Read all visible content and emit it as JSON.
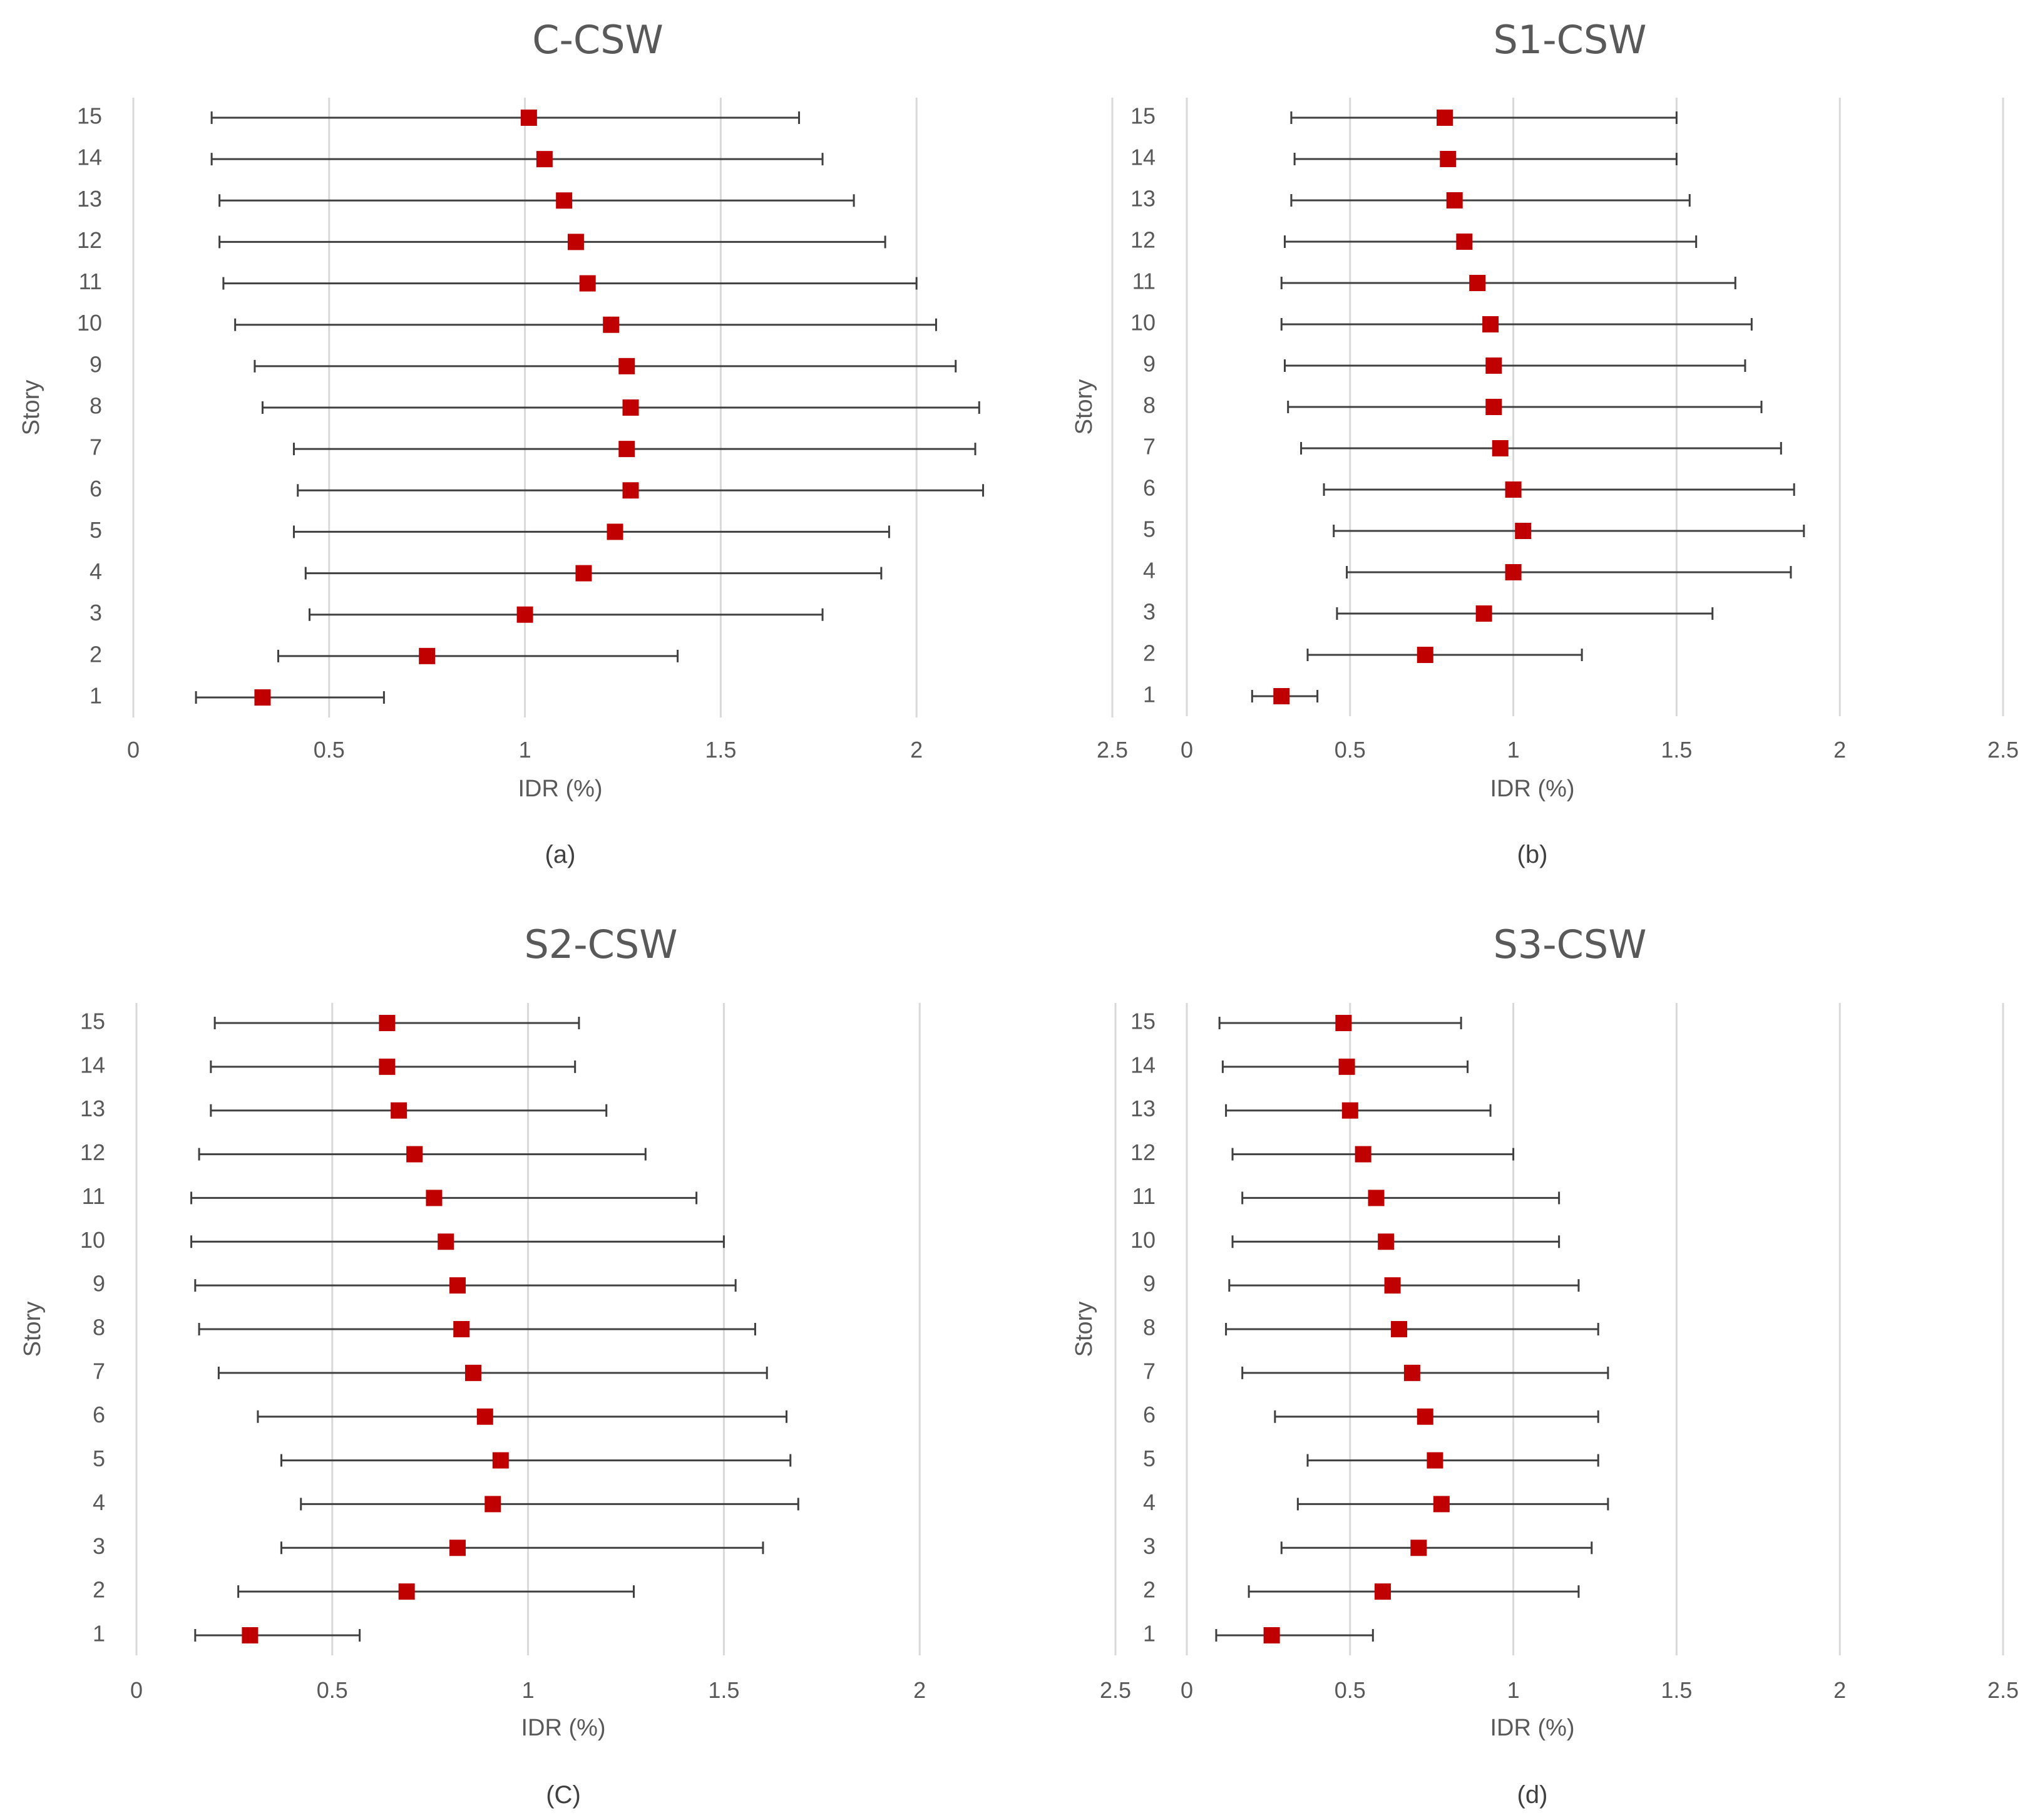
{
  "chart_data": [
    {
      "type": "scatter",
      "title": "C-CSW",
      "caption": "(a)",
      "xlabel": "IDR (%)",
      "ylabel": "Story",
      "xlim": [
        0,
        2.5
      ],
      "x_ticks": [
        "0",
        "0.5",
        "1",
        "1.5",
        "2",
        "2.5"
      ],
      "grid": true,
      "series": [
        {
          "name": "IDR",
          "color": "#c00000",
          "stories": [
            1,
            2,
            3,
            4,
            5,
            6,
            7,
            8,
            9,
            10,
            11,
            12,
            13,
            14,
            15
          ],
          "mean": [
            0.33,
            0.75,
            1.0,
            1.15,
            1.23,
            1.27,
            1.26,
            1.27,
            1.26,
            1.22,
            1.16,
            1.13,
            1.1,
            1.05,
            1.01
          ],
          "min": [
            0.16,
            0.37,
            0.45,
            0.44,
            0.41,
            0.42,
            0.41,
            0.33,
            0.31,
            0.26,
            0.23,
            0.22,
            0.22,
            0.2,
            0.2
          ],
          "max": [
            0.64,
            1.39,
            1.76,
            1.91,
            1.93,
            2.17,
            2.15,
            2.16,
            2.1,
            2.05,
            2.0,
            1.92,
            1.84,
            1.76,
            1.7
          ]
        }
      ]
    },
    {
      "type": "scatter",
      "title": "S1-CSW",
      "caption": "(b)",
      "xlabel": "IDR (%)",
      "ylabel": "Story",
      "xlim": [
        0,
        2.5
      ],
      "x_ticks": [
        "0",
        "0.5",
        "1",
        "1.5",
        "2",
        "2.5"
      ],
      "grid": true,
      "series": [
        {
          "name": "IDR",
          "color": "#c00000",
          "stories": [
            1,
            2,
            3,
            4,
            5,
            6,
            7,
            8,
            9,
            10,
            11,
            12,
            13,
            14,
            15
          ],
          "mean": [
            0.29,
            0.73,
            0.91,
            1.0,
            1.03,
            1.0,
            0.96,
            0.94,
            0.94,
            0.93,
            0.89,
            0.85,
            0.82,
            0.8,
            0.79
          ],
          "min": [
            0.2,
            0.37,
            0.46,
            0.49,
            0.45,
            0.42,
            0.35,
            0.31,
            0.3,
            0.29,
            0.29,
            0.3,
            0.32,
            0.33,
            0.32
          ],
          "max": [
            0.4,
            1.21,
            1.61,
            1.85,
            1.89,
            1.86,
            1.82,
            1.76,
            1.71,
            1.73,
            1.68,
            1.56,
            1.54,
            1.5,
            1.5
          ]
        }
      ]
    },
    {
      "type": "scatter",
      "title": "S2-CSW",
      "caption": "(C)",
      "xlabel": "IDR (%)",
      "ylabel": "Story",
      "xlim": [
        0,
        2.5
      ],
      "x_ticks": [
        "0",
        "0.5",
        "1",
        "1.5",
        "2",
        "2.5"
      ],
      "grid": true,
      "series": [
        {
          "name": "IDR",
          "color": "#c00000",
          "stories": [
            1,
            2,
            3,
            4,
            5,
            6,
            7,
            8,
            9,
            10,
            11,
            12,
            13,
            14,
            15
          ],
          "mean": [
            0.29,
            0.69,
            0.82,
            0.91,
            0.93,
            0.89,
            0.86,
            0.83,
            0.82,
            0.79,
            0.76,
            0.71,
            0.67,
            0.64,
            0.64
          ],
          "min": [
            0.15,
            0.26,
            0.37,
            0.42,
            0.37,
            0.31,
            0.21,
            0.16,
            0.15,
            0.14,
            0.14,
            0.16,
            0.19,
            0.19,
            0.2
          ],
          "max": [
            0.57,
            1.27,
            1.6,
            1.69,
            1.67,
            1.66,
            1.61,
            1.58,
            1.53,
            1.5,
            1.43,
            1.3,
            1.2,
            1.12,
            1.13
          ]
        }
      ]
    },
    {
      "type": "scatter",
      "title": "S3-CSW",
      "caption": "(d)",
      "xlabel": "IDR (%)",
      "ylabel": "Story",
      "xlim": [
        0,
        2.5
      ],
      "x_ticks": [
        "0",
        "0.5",
        "1",
        "1.5",
        "2",
        "2.5"
      ],
      "grid": true,
      "series": [
        {
          "name": "IDR",
          "color": "#c00000",
          "stories": [
            1,
            2,
            3,
            4,
            5,
            6,
            7,
            8,
            9,
            10,
            11,
            12,
            13,
            14,
            15
          ],
          "mean": [
            0.26,
            0.6,
            0.71,
            0.78,
            0.76,
            0.73,
            0.69,
            0.65,
            0.63,
            0.61,
            0.58,
            0.54,
            0.5,
            0.49,
            0.48
          ],
          "min": [
            0.09,
            0.19,
            0.29,
            0.34,
            0.37,
            0.27,
            0.17,
            0.12,
            0.13,
            0.14,
            0.17,
            0.14,
            0.12,
            0.11,
            0.1
          ],
          "max": [
            0.57,
            1.2,
            1.24,
            1.29,
            1.26,
            1.26,
            1.29,
            1.26,
            1.2,
            1.14,
            1.14,
            1.0,
            0.93,
            0.86,
            0.84
          ]
        }
      ]
    }
  ]
}
